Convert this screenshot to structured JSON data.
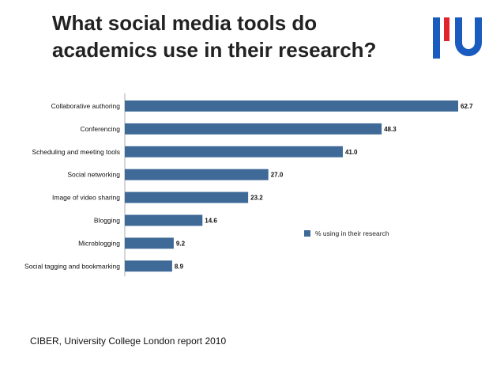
{
  "page": {
    "title": "What social media tools do academics use in their research?",
    "source": "CIBER, University College London report 2010"
  },
  "logo": {
    "icon": "university-logo-icon",
    "colors": {
      "blue": "#1a5bbf",
      "red": "#e0242c"
    }
  },
  "chart_data": {
    "type": "bar",
    "orientation": "horizontal",
    "title": "What social media tools do academics use in their research?",
    "categories": [
      "Collaborative authoring",
      "Conferencing",
      "Scheduling and meeting tools",
      "Social networking",
      "Image of video sharing",
      "Blogging",
      "Microblogging",
      "Social tagging and bookmarking"
    ],
    "series": [
      {
        "name": "% using in their research",
        "values": [
          62.7,
          48.3,
          41.0,
          27.0,
          23.2,
          14.6,
          9.2,
          8.9
        ],
        "labels": [
          "62.7",
          "48.3",
          "41.0",
          "27.0",
          "23.2",
          "14.6",
          "9.2",
          "8.9"
        ],
        "color": "#3f6a97"
      }
    ],
    "xlim": [
      0,
      62.7
    ],
    "grid": false,
    "legend_position": "right"
  }
}
